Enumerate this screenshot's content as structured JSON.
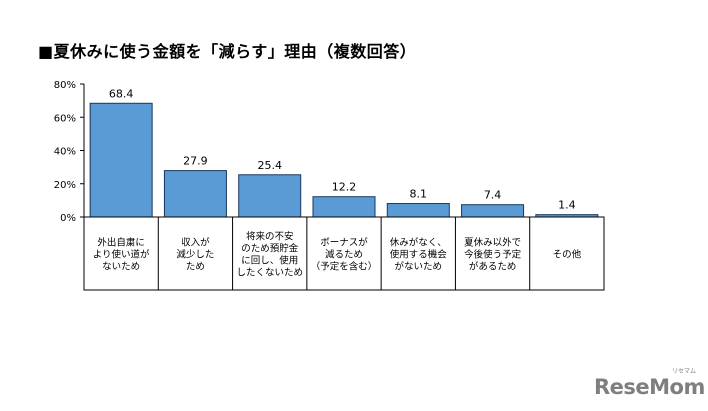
{
  "title": "■夏休みに使う金額を「減らす」理由（複数回答）",
  "chart_data": {
    "type": "bar",
    "title": "■夏休みに使う金額を「減らす」理由（複数回答）",
    "xlabel": "",
    "ylabel": "",
    "ylim": [
      0,
      80
    ],
    "yticks": [
      0,
      20,
      40,
      60,
      80
    ],
    "ytick_labels": [
      "0%",
      "20%",
      "40%",
      "60%",
      "80%"
    ],
    "grid": false,
    "legend": "none",
    "bar_color": "#5b9bd5",
    "bar_edge_color": "#17375e",
    "categories": [
      [
        "外出自粛に",
        "より使い道が",
        "ないため"
      ],
      [
        "収入が",
        "減少した",
        "ため"
      ],
      [
        "将来の不安",
        "のため預貯金",
        "に回し、使用",
        "したくないため"
      ],
      [
        "ボーナスが",
        "減るため",
        "（予定を含む）"
      ],
      [
        "休みがなく、",
        "使用する機会",
        "がないため"
      ],
      [
        "夏休み以外で",
        "今後使う予定",
        "があるため"
      ],
      [
        "その他"
      ]
    ],
    "values": [
      68.4,
      27.9,
      25.4,
      12.2,
      8.1,
      7.4,
      1.4
    ],
    "data_labels": [
      "68.4",
      "27.9",
      "25.4",
      "12.2",
      "8.1",
      "7.4",
      "1.4"
    ]
  },
  "watermark": {
    "brand": "ReseMom",
    "ruby": "リセマム"
  }
}
